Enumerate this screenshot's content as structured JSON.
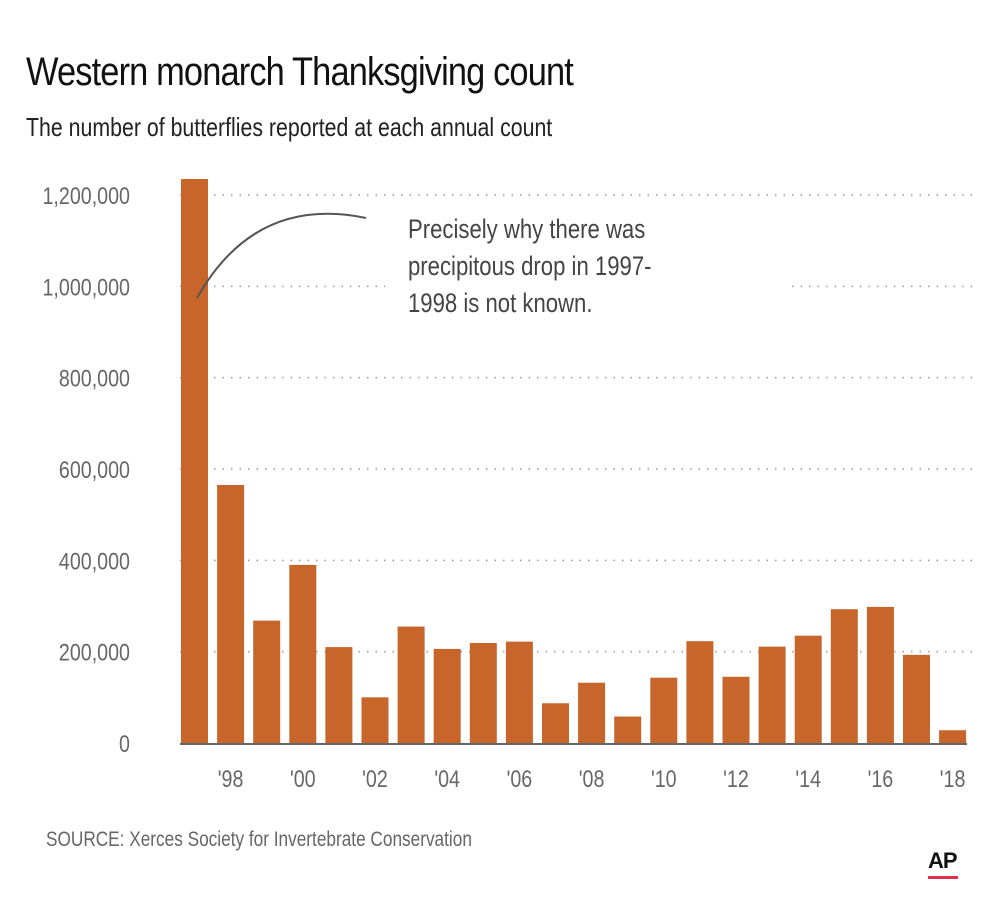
{
  "header": {
    "title": "Western monarch Thanksgiving count",
    "subtitle": "The number of butterflies reported at each annual count"
  },
  "footer": {
    "source": "SOURCE: Xerces Society for Invertebrate Conservation",
    "logo": "AP"
  },
  "colors": {
    "bar": "#c8652a",
    "grid": "#999999",
    "axis": "#666666",
    "text": "#666666"
  },
  "chart_data": {
    "type": "bar",
    "title": "Western monarch Thanksgiving count",
    "xlabel": "",
    "ylabel": "",
    "categories": [
      "1997",
      "1998",
      "1999",
      "2000",
      "2001",
      "2002",
      "2003",
      "2004",
      "2005",
      "2006",
      "2007",
      "2008",
      "2009",
      "2010",
      "2011",
      "2012",
      "2013",
      "2014",
      "2015",
      "2016",
      "2017",
      "2018"
    ],
    "values": [
      1235000,
      565000,
      268000,
      390000,
      210000,
      100000,
      255000,
      206000,
      219000,
      222000,
      87000,
      132000,
      58000,
      143000,
      223000,
      145000,
      211000,
      235000,
      293000,
      298000,
      193000,
      28000
    ],
    "ylim": [
      0,
      1200000
    ],
    "yticks": [
      0,
      200000,
      400000,
      600000,
      800000,
      1000000,
      1200000
    ],
    "ytick_labels": [
      "0",
      "200,000",
      "400,000",
      "600,000",
      "800,000",
      "1,000,000",
      "1,200,000"
    ],
    "xtick_labels": [
      {
        "index": 1,
        "label": "'98"
      },
      {
        "index": 3,
        "label": "'00"
      },
      {
        "index": 5,
        "label": "'02"
      },
      {
        "index": 7,
        "label": "'04"
      },
      {
        "index": 9,
        "label": "'06"
      },
      {
        "index": 11,
        "label": "'08"
      },
      {
        "index": 13,
        "label": "'10"
      },
      {
        "index": 15,
        "label": "'12"
      },
      {
        "index": 17,
        "label": "'14"
      },
      {
        "index": 19,
        "label": "'16"
      },
      {
        "index": 21,
        "label": "'18"
      }
    ],
    "grid": true,
    "annotation": {
      "lines": [
        "Precisely why there was",
        "precipitous drop in 1997-",
        "1998 is not known."
      ],
      "points_to": "1997"
    }
  }
}
